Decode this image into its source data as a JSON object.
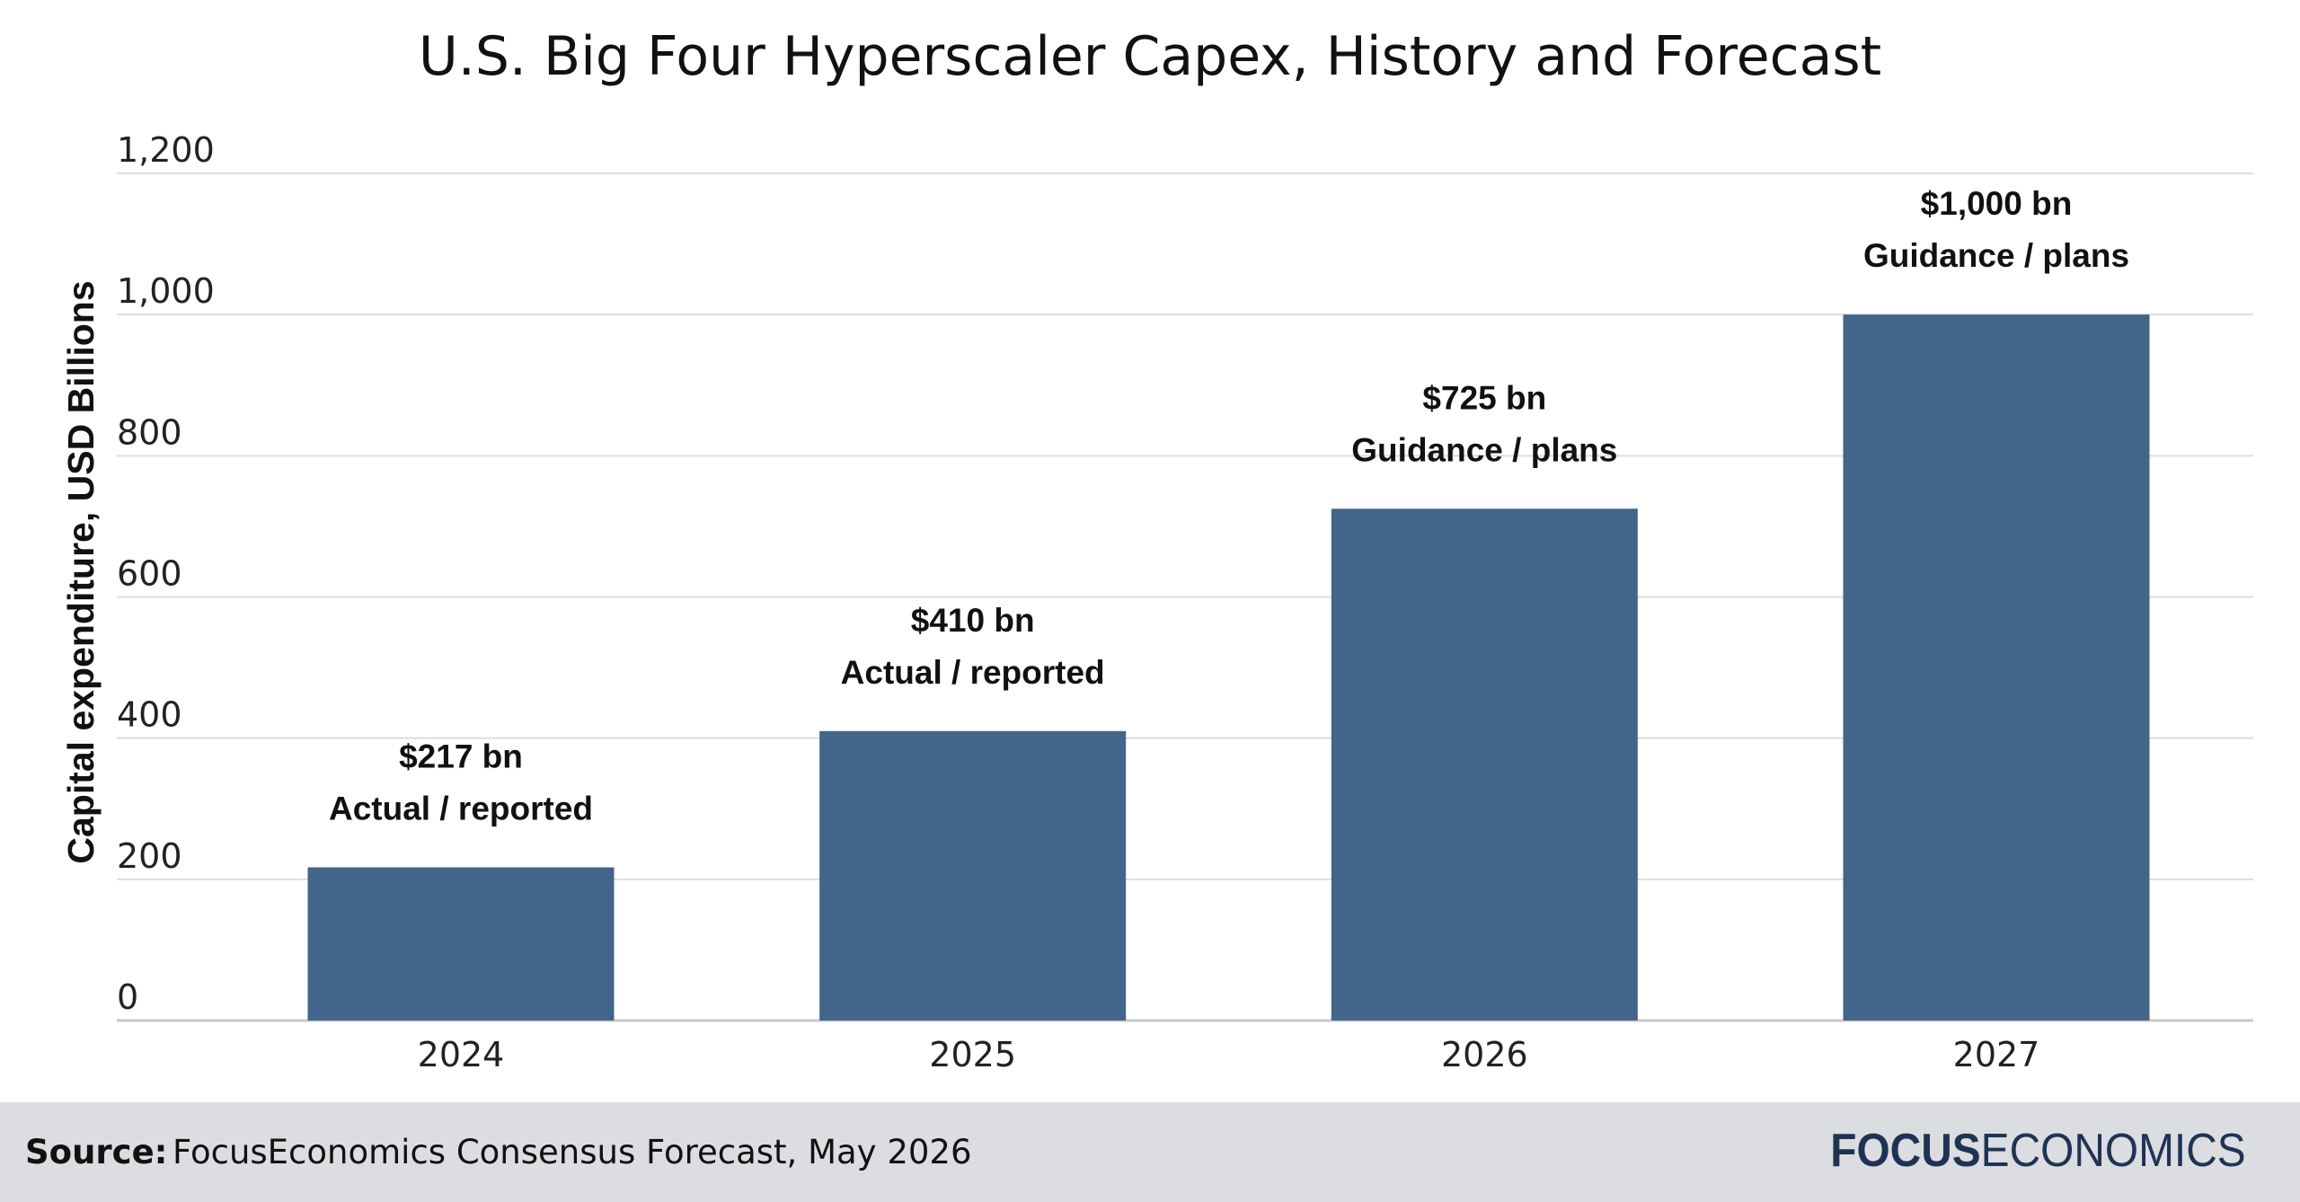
{
  "chart_data": {
    "type": "bar",
    "title": "U.S. Big Four Hyperscaler Capex, History and Forecast",
    "xlabel": "",
    "ylabel": "Capital expenditure, USD Billions",
    "ylim": [
      0,
      1200
    ],
    "yticks": [
      "0",
      "200",
      "400",
      "600",
      "800",
      "1,000",
      "1,200"
    ],
    "ytick_values": [
      0,
      200,
      400,
      600,
      800,
      1000,
      1200
    ],
    "grid": true,
    "categories": [
      "2024",
      "2025",
      "2026",
      "2027"
    ],
    "values": [
      217,
      410,
      725,
      1000
    ],
    "value_labels": [
      "$217 bn",
      "$410 bn",
      "$725 bn",
      "$1,000 bn"
    ],
    "status_labels": [
      "Actual / reported",
      "Actual / reported",
      "Guidance / plans",
      "Guidance / plans"
    ],
    "bar_color": "#436589"
  },
  "footer": {
    "source_label": "Source:",
    "source_text": "FocusEconomics Consensus Forecast, May 2026",
    "logo_bold": "FOCUS",
    "logo_rest": "ECONOMICS"
  },
  "colors": {
    "footer_background": "#dcdde0",
    "gridline": "#dddddd",
    "logo": "#1e3354"
  }
}
